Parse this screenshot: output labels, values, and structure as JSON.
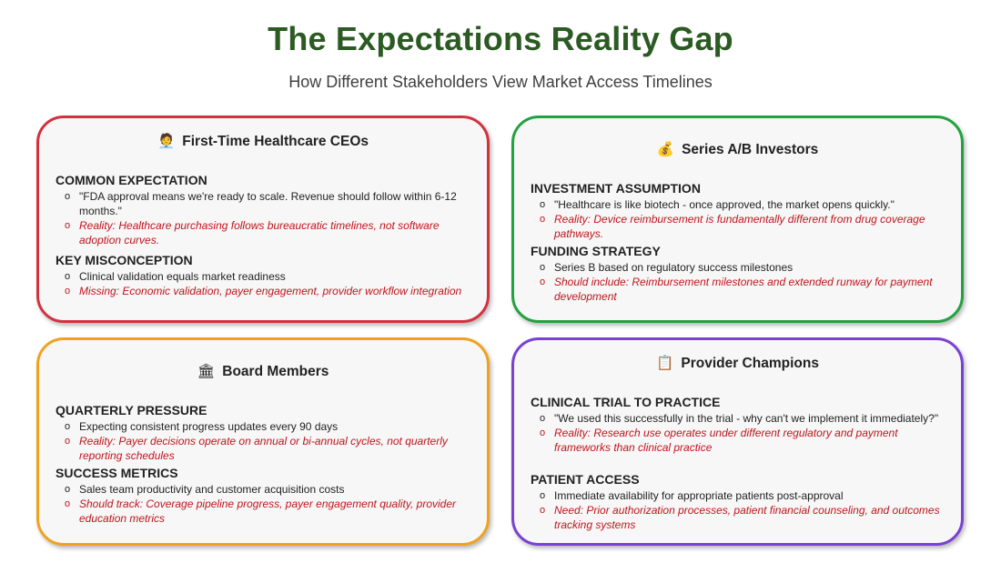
{
  "page": {
    "title": "The Expectations Reality Gap",
    "subtitle": "How Different Stakeholders View Market Access Timelines"
  },
  "colors": {
    "title": "#2b5a23",
    "ceo_border": "#d4313e",
    "investor_border": "#22a23f",
    "board_border": "#f0a21f",
    "provider_border": "#7a40d6",
    "reality_text": "#c0141c"
  },
  "cards": [
    {
      "icon": "person-icon",
      "icon_glyph": "🧑‍💼",
      "title": "First-Time Healthcare CEOs",
      "sections": [
        {
          "title": "COMMON EXPECTATION",
          "items": [
            {
              "bullet": "o",
              "text": "\"FDA approval means we're ready to scale. Revenue should follow within 6-12 months.\""
            },
            {
              "bullet": "o",
              "text": "Reality: Healthcare purchasing follows bureaucratic timelines, not software adoption curves."
            }
          ]
        },
        {
          "title": "KEY MISCONCEPTION",
          "items": [
            {
              "bullet": "o",
              "text": "Clinical validation equals market readiness"
            },
            {
              "bullet": "o",
              "text": "Missing: Economic validation, payer engagement, provider workflow integration"
            }
          ]
        }
      ]
    },
    {
      "icon": "money-bag-icon",
      "icon_glyph": "💰",
      "title": "Series A/B Investors",
      "sections": [
        {
          "title": "INVESTMENT ASSUMPTION",
          "items": [
            {
              "bullet": "o",
              "text": "\"Healthcare is like biotech - once approved, the market opens quickly.\""
            },
            {
              "bullet": "o",
              "text": "Reality: Device reimbursement is fundamentally different from drug coverage pathways."
            }
          ]
        },
        {
          "title": "FUNDING STRATEGY",
          "items": [
            {
              "bullet": "o",
              "text": "Series B based on regulatory success milestones"
            },
            {
              "bullet": "o",
              "text": "Should include: Reimbursement milestones and extended runway for payment development"
            }
          ]
        }
      ]
    },
    {
      "icon": "bank-building-icon",
      "icon_glyph": "🏛",
      "title": "Board Members",
      "sections": [
        {
          "title": "QUARTERLY PRESSURE",
          "items": [
            {
              "bullet": "o",
              "text": "Expecting consistent progress updates every 90 days"
            },
            {
              "bullet": "o",
              "text": "Reality: Payer decisions operate on annual or bi-annual cycles, not quarterly reporting schedules"
            }
          ]
        },
        {
          "title": "SUCCESS METRICS",
          "items": [
            {
              "bullet": "o",
              "text": "Sales team productivity and customer acquisition costs"
            },
            {
              "bullet": "o",
              "text": "Should track: Coverage pipeline progress, payer engagement quality, provider education metrics"
            }
          ]
        }
      ]
    },
    {
      "icon": "clipboard-medical-icon",
      "icon_glyph": "📋",
      "title": "Provider Champions",
      "sections": [
        {
          "title": "CLINICAL TRIAL TO PRACTICE",
          "items": [
            {
              "bullet": "o",
              "text": "\"We used this successfully in the trial - why can't we implement it immediately?\""
            },
            {
              "bullet": "o",
              "text": "Reality: Research use operates under different regulatory and payment frameworks than clinical practice"
            }
          ]
        },
        {
          "title": "PATIENT ACCESS",
          "items": [
            {
              "bullet": "o",
              "text": "Immediate availability for appropriate patients post-approval"
            },
            {
              "bullet": "o",
              "text": "Need: Prior authorization processes, patient financial counseling, and outcomes tracking systems"
            }
          ]
        }
      ]
    }
  ]
}
